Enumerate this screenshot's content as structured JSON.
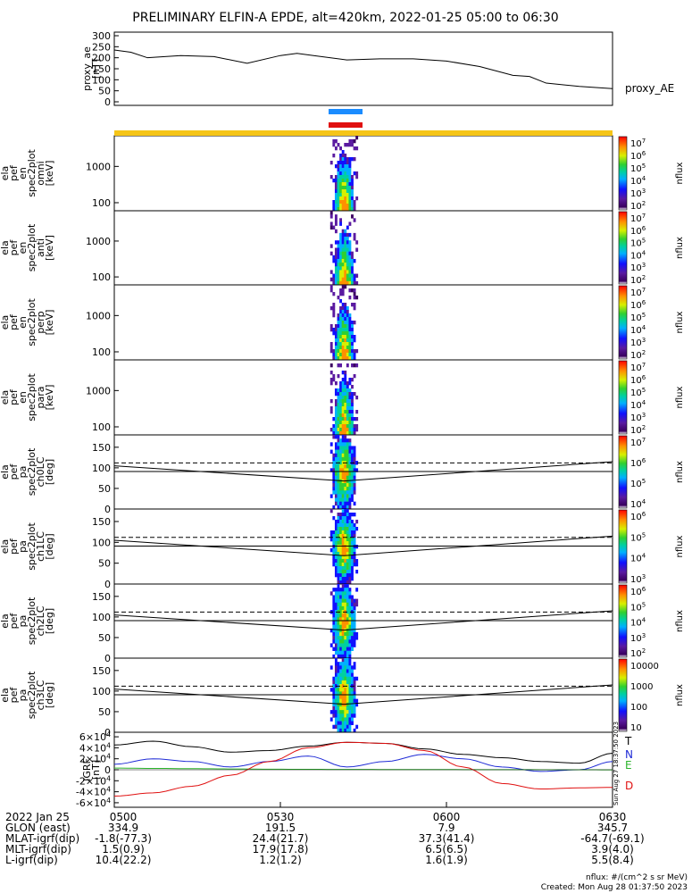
{
  "title": "PRELIMINARY ELFIN-A EPDE, alt=420km, 2022-01-25 05:00 to 06:30",
  "colors": {
    "science_bar_yellow": "#f5c518",
    "bar_blue": "#1a8cff",
    "bar_red": "#e01010",
    "comp_T": "#000000",
    "comp_N": "#1f2bd6",
    "comp_E": "#2bb52b",
    "comp_D": "#e01010"
  },
  "chart_data": [
    {
      "id": "proxy_ae",
      "type": "line",
      "ylabel_lines": [
        "proxy_ae",
        "[nT]"
      ],
      "series_label": "proxy_AE",
      "ylim": [
        0,
        300
      ],
      "yticks": [
        0,
        50,
        100,
        150,
        200,
        250,
        300
      ],
      "x_minutes": [
        0,
        3,
        6,
        12,
        18,
        24,
        30,
        33,
        36,
        42,
        48,
        54,
        60,
        66,
        72,
        75,
        78,
        84,
        90
      ],
      "values": [
        235,
        225,
        200,
        210,
        205,
        175,
        210,
        220,
        210,
        190,
        195,
        195,
        185,
        160,
        120,
        115,
        85,
        70,
        60
      ]
    },
    {
      "id": "omni",
      "type": "heatmap",
      "ylabel_lines": [
        "ela",
        "pef",
        "en",
        "spec2plot",
        "omni",
        "[keV]"
      ],
      "yscale": "log",
      "yticks": [
        100,
        1000
      ],
      "ylim": [
        60,
        7000
      ],
      "colorbar": {
        "label": "nflux",
        "ticks": [
          "10^2",
          "10^3",
          "10^4",
          "10^5",
          "10^6",
          "10^7"
        ]
      },
      "data_window_min": [
        39,
        44
      ]
    },
    {
      "id": "anti",
      "type": "heatmap",
      "ylabel_lines": [
        "ela",
        "pef",
        "en",
        "spec2plot",
        "anti",
        "[keV]"
      ],
      "yscale": "log",
      "yticks": [
        100,
        1000
      ],
      "ylim": [
        60,
        7000
      ],
      "colorbar": {
        "label": "nflux",
        "ticks": [
          "10^2",
          "10^3",
          "10^4",
          "10^5",
          "10^6",
          "10^7"
        ]
      },
      "data_window_min": [
        39,
        44
      ]
    },
    {
      "id": "perp",
      "type": "heatmap",
      "ylabel_lines": [
        "ela",
        "pef",
        "en",
        "spec2plot",
        "perp",
        "[keV]"
      ],
      "yscale": "log",
      "yticks": [
        100,
        1000
      ],
      "ylim": [
        60,
        7000
      ],
      "colorbar": {
        "label": "nflux",
        "ticks": [
          "10^2",
          "10^3",
          "10^4",
          "10^5",
          "10^6",
          "10^7"
        ]
      },
      "data_window_min": [
        39,
        44
      ]
    },
    {
      "id": "para",
      "type": "heatmap",
      "ylabel_lines": [
        "ela",
        "pef",
        "en",
        "spec2plot",
        "para",
        "[keV]"
      ],
      "yscale": "log",
      "yticks": [
        100,
        1000
      ],
      "ylim": [
        60,
        7000
      ],
      "colorbar": {
        "label": "nflux",
        "ticks": [
          "10^2",
          "10^3",
          "10^4",
          "10^5",
          "10^6",
          "10^7"
        ]
      },
      "data_window_min": [
        39,
        44
      ]
    },
    {
      "id": "ch0LC",
      "type": "heatmap",
      "ylabel_lines": [
        "ela",
        "pef",
        "pa",
        "spec2plot",
        "ch0LC",
        "[deg]"
      ],
      "yticks": [
        0,
        50,
        100,
        150
      ],
      "ylim": [
        0,
        180
      ],
      "colorbar": {
        "label": "nflux",
        "ticks": [
          "10^4",
          "10^5",
          "10^6",
          "10^7"
        ]
      },
      "data_window_min": [
        39,
        44
      ]
    },
    {
      "id": "ch1LC",
      "type": "heatmap",
      "ylabel_lines": [
        "ela",
        "pef",
        "pa",
        "spec2plot",
        "ch1LC",
        "[deg]"
      ],
      "yticks": [
        0,
        50,
        100,
        150
      ],
      "ylim": [
        0,
        180
      ],
      "colorbar": {
        "label": "nflux",
        "ticks": [
          "10^3",
          "10^4",
          "10^5",
          "10^6"
        ]
      },
      "data_window_min": [
        39,
        44
      ]
    },
    {
      "id": "ch2LC",
      "type": "heatmap",
      "ylabel_lines": [
        "ela",
        "pef",
        "pa",
        "spec2plot",
        "ch2LC",
        "[deg]"
      ],
      "yticks": [
        0,
        50,
        100,
        150
      ],
      "ylim": [
        0,
        180
      ],
      "colorbar": {
        "label": "nflux",
        "ticks": [
          "10^2",
          "10^3",
          "10^4",
          "10^5",
          "10^6"
        ]
      },
      "data_window_min": [
        39,
        44
      ]
    },
    {
      "id": "ch3LC",
      "type": "heatmap",
      "ylabel_lines": [
        "ela",
        "pef",
        "pa",
        "spec2plot",
        "ch3LC",
        "[deg]"
      ],
      "yticks": [
        0,
        50,
        100,
        150
      ],
      "ylim": [
        0,
        180
      ],
      "colorbar": {
        "label": "nflux",
        "ticks": [
          "10",
          "100",
          "1000",
          "10000"
        ]
      },
      "data_window_min": [
        39,
        44
      ]
    },
    {
      "id": "igrf",
      "type": "line",
      "ylabel_lines": [
        "IGRF",
        "[nT]"
      ],
      "ylim": [
        -65000,
        65000
      ],
      "yticks": [
        "-6×10^4",
        "-4×10^4",
        "-2×10^4",
        "0",
        "2×10^4",
        "4×10^4",
        "6×10^4"
      ],
      "x_minutes": [
        0,
        7,
        14,
        21,
        28,
        35,
        42,
        49,
        56,
        63,
        70,
        77,
        84,
        90
      ],
      "series": [
        {
          "name": "T",
          "values": [
            45000,
            52000,
            42000,
            32000,
            35000,
            43000,
            50000,
            48000,
            38000,
            28000,
            22000,
            15000,
            12000,
            30000
          ]
        },
        {
          "name": "N",
          "values": [
            10000,
            20000,
            15000,
            5000,
            15000,
            25000,
            5000,
            15000,
            28000,
            20000,
            5000,
            -3000,
            0,
            15000
          ]
        },
        {
          "name": "E",
          "values": [
            3000,
            2500,
            2000,
            1500,
            1000,
            800,
            600,
            500,
            400,
            300,
            200,
            100,
            0,
            -200
          ]
        },
        {
          "name": "D",
          "values": [
            -48000,
            -42000,
            -30000,
            -10000,
            15000,
            40000,
            50000,
            48000,
            35000,
            5000,
            -25000,
            -35000,
            -33000,
            -32000
          ]
        }
      ]
    }
  ],
  "x_axis": {
    "tick_labels": [
      "0500",
      "0530",
      "0600",
      "0630"
    ],
    "tick_minutes": [
      0,
      30,
      60,
      90
    ],
    "date_label": "2022 Jan 25",
    "rows": [
      {
        "label": "GLON (east)",
        "values": [
          "334.9",
          "191.5",
          "7.9",
          "345.7"
        ]
      },
      {
        "label": "MLAT-igrf(dip)",
        "values": [
          "-1.8(-77.3)",
          "24.4(21.7)",
          "37.3(41.4)",
          "-64.7(-69.1)"
        ]
      },
      {
        "label": "MLT-igrf(dip)",
        "values": [
          "1.5(0.9)",
          "17.9(17.8)",
          "6.5(6.5)",
          "3.9(4.0)"
        ]
      },
      {
        "label": "L-igrf(dip)",
        "values": [
          "10.4(22.2)",
          "1.2(1.2)",
          "1.6(1.9)",
          "5.5(8.4)"
        ]
      }
    ]
  },
  "footer": {
    "units": "nflux: #/(cm^2 s sr MeV)",
    "created": "Created: Mon Aug 28 01:37:50 2023",
    "side_stamp": "Sun Aug 27 18:37:50 2023"
  }
}
